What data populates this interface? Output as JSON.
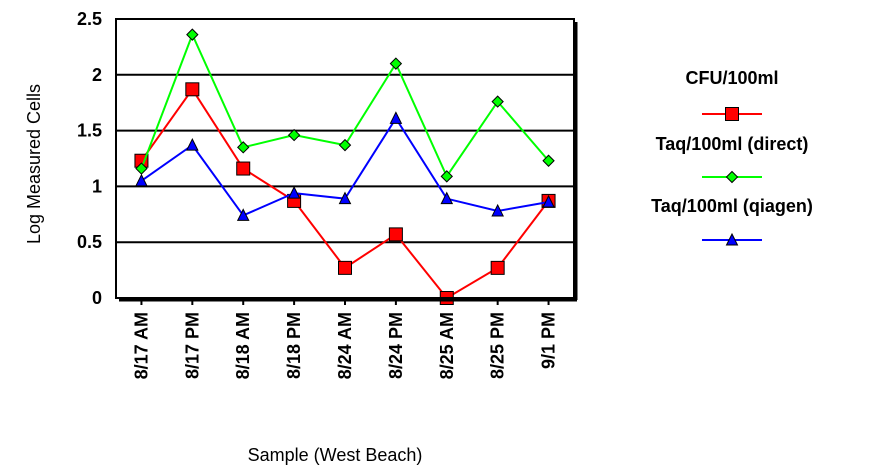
{
  "chart_data": {
    "type": "line",
    "title": "",
    "xlabel": "Sample (West Beach)",
    "ylabel": "Log Measured Cells",
    "categories": [
      "8/17 AM",
      "8/17 PM",
      "8/18 AM",
      "8/18 PM",
      "8/24 AM",
      "8/24 PM",
      "8/25 AM",
      "8/25 PM",
      "9/1 PM"
    ],
    "ylim": [
      0,
      2.5
    ],
    "yticks": [
      "0",
      "0.5",
      "1",
      "1.5",
      "2",
      "2.5"
    ],
    "ytick_values": [
      0,
      0.5,
      1,
      1.5,
      2,
      2.5
    ],
    "grid": true,
    "legend_position": "right",
    "series": [
      {
        "name": "CFU/100ml",
        "color": "#ff0000",
        "marker": "square",
        "values": [
          1.23,
          1.87,
          1.16,
          0.87,
          0.27,
          0.57,
          0.0,
          0.27,
          0.87
        ]
      },
      {
        "name": "Taq/100ml (direct)",
        "color": "#00ff00",
        "marker": "diamond",
        "values": [
          1.16,
          2.36,
          1.35,
          1.46,
          1.37,
          2.1,
          1.09,
          1.76,
          1.23
        ]
      },
      {
        "name": "Taq/100ml (qiagen)",
        "color": "#0000ff",
        "marker": "triangle",
        "values": [
          1.05,
          1.37,
          0.74,
          0.94,
          0.89,
          1.61,
          0.89,
          0.78,
          0.86
        ]
      }
    ]
  }
}
